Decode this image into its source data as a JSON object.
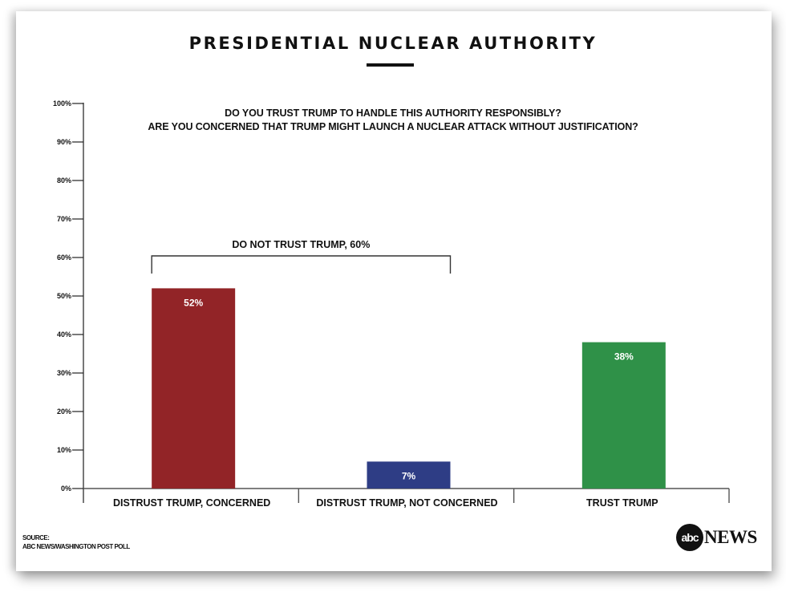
{
  "title": "PRESIDENTIAL NUCLEAR AUTHORITY",
  "source": {
    "label": "SOURCE:",
    "text": "ABC NEWS/WASHINGTON POST POLL"
  },
  "logo": {
    "circle_text": "abc",
    "word": "NEWS"
  },
  "chart_data": {
    "type": "bar",
    "title": "PRESIDENTIAL NUCLEAR AUTHORITY",
    "subtitle": [
      "DO YOU TRUST TRUMP TO HANDLE THIS AUTHORITY RESPONSIBLY?",
      "ARE YOU CONCERNED THAT TRUMP MIGHT LAUNCH A NUCLEAR ATTACK WITHOUT JUSTIFICATION?"
    ],
    "categories": [
      "DISTRUST TRUMP, CONCERNED",
      "DISTRUST TRUMP, NOT CONCERNED",
      "TRUST TRUMP"
    ],
    "values": [
      52,
      7,
      38
    ],
    "value_labels": [
      "52%",
      "7%",
      "38%"
    ],
    "colors": [
      "#922427",
      "#2e3d85",
      "#2f9148"
    ],
    "xlabel": "",
    "ylabel": "",
    "ylim": [
      0,
      100
    ],
    "yticks": [
      0,
      10,
      20,
      30,
      40,
      50,
      60,
      70,
      80,
      90,
      100
    ],
    "ytick_labels": [
      "0%",
      "10%",
      "20%",
      "30%",
      "40%",
      "50%",
      "60%",
      "70%",
      "80%",
      "90%",
      "100%"
    ],
    "grid": false,
    "legend": "none",
    "annotations": [
      {
        "type": "bracket",
        "text": "DO NOT TRUST TRUMP, 60%",
        "spans_categories": [
          0,
          1
        ],
        "value": 60
      }
    ]
  }
}
